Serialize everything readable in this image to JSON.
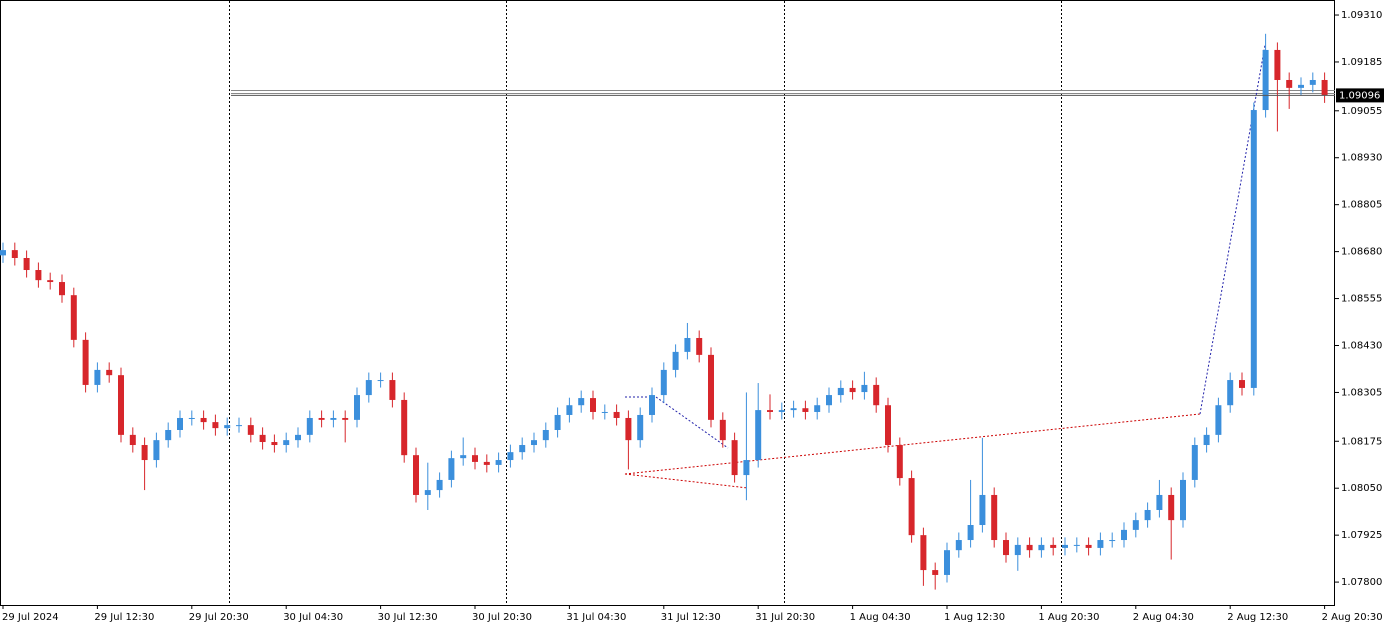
{
  "chart_data": {
    "type": "candlestick",
    "categories": [
      "29 Jul 2024",
      null,
      null,
      null,
      null,
      null,
      null,
      null,
      "29 Jul 12:30",
      null,
      null,
      null,
      null,
      null,
      null,
      null,
      "29 Jul 20:30",
      null,
      null,
      null,
      null,
      null,
      null,
      null,
      "30 Jul 04:30",
      null,
      null,
      null,
      null,
      null,
      null,
      null,
      "30 Jul 12:30",
      null,
      null,
      null,
      null,
      null,
      null,
      null,
      "30 Jul 20:30",
      null,
      null,
      null,
      null,
      null,
      null,
      null,
      "31 Jul 04:30",
      null,
      null,
      null,
      null,
      null,
      null,
      null,
      "31 Jul 12:30",
      null,
      null,
      null,
      null,
      null,
      null,
      null,
      "31 Jul 20:30",
      null,
      null,
      null,
      null,
      null,
      null,
      null,
      "1 Aug 04:30",
      null,
      null,
      null,
      null,
      null,
      null,
      null,
      "1 Aug 12:30",
      null,
      null,
      null,
      null,
      null,
      null,
      null,
      "1 Aug 20:30",
      null,
      null,
      null,
      null,
      null,
      null,
      null,
      "2 Aug 04:30",
      null,
      null,
      null,
      null,
      null,
      null,
      null,
      "2 Aug 12:30",
      null,
      null,
      null,
      null,
      null,
      null,
      null,
      "2 Aug 20:30"
    ],
    "open": [
      1.0867,
      1.08684,
      1.08663,
      1.08631,
      1.08604,
      1.08599,
      1.08564,
      1.08445,
      1.08325,
      1.08365,
      1.08351,
      1.08192,
      1.08165,
      1.08125,
      1.08178,
      1.08205,
      1.08237,
      1.08237,
      1.08226,
      1.0821,
      1.08218,
      1.08218,
      1.08192,
      1.08173,
      1.08165,
      1.08178,
      1.08192,
      1.08237,
      1.08232,
      1.08237,
      1.08232,
      1.08298,
      1.08338,
      1.08338,
      1.08285,
      1.08138,
      1.08032,
      1.08045,
      1.08072,
      1.0813,
      1.08138,
      1.0812,
      1.08112,
      1.08125,
      1.08146,
      1.08165,
      1.08178,
      1.08205,
      1.08245,
      1.08271,
      1.0829,
      1.08253,
      1.08253,
      1.08237,
      1.08178,
      1.08245,
      1.08298,
      1.08365,
      1.08413,
      1.0845,
      1.08405,
      1.08232,
      1.08178,
      1.08085,
      1.08125,
      1.08258,
      1.08253,
      1.08258,
      1.08263,
      1.08253,
      1.08271,
      1.08298,
      1.08317,
      1.08306,
      1.08325,
      1.08271,
      1.08165,
      1.08077,
      1.07925,
      1.07832,
      1.07819,
      1.07885,
      1.07912,
      1.07952,
      1.08032,
      1.07912,
      1.07872,
      1.07899,
      1.07885,
      1.07899,
      1.07891,
      1.07899,
      1.07899,
      1.07891,
      1.07912,
      1.07912,
      1.07939,
      1.07965,
      1.07992,
      1.08032,
      1.07965,
      1.08072,
      1.08165,
      1.08192,
      1.08271,
      1.08338,
      1.08317,
      1.09057,
      1.09217,
      1.09137,
      1.09116,
      1.09124,
      1.09137
    ],
    "high": [
      1.08704,
      1.08704,
      1.08683,
      1.08651,
      1.08624,
      1.08619,
      1.08584,
      1.08465,
      1.08385,
      1.08385,
      1.08371,
      1.08212,
      1.08185,
      1.08198,
      1.08225,
      1.08257,
      1.08257,
      1.08257,
      1.08246,
      1.08238,
      1.08238,
      1.08238,
      1.08212,
      1.08193,
      1.08198,
      1.08212,
      1.08257,
      1.08257,
      1.08257,
      1.08257,
      1.08318,
      1.08358,
      1.08358,
      1.08358,
      1.08305,
      1.08158,
      1.08118,
      1.08092,
      1.0815,
      1.08185,
      1.08158,
      1.0814,
      1.08145,
      1.08166,
      1.08185,
      1.08198,
      1.08225,
      1.08265,
      1.08291,
      1.0831,
      1.0831,
      1.08273,
      1.08273,
      1.08257,
      1.08265,
      1.08318,
      1.08385,
      1.08433,
      1.0849,
      1.0847,
      1.08425,
      1.08252,
      1.08198,
      1.08305,
      1.0833,
      1.083,
      1.08278,
      1.08283,
      1.08283,
      1.08291,
      1.08318,
      1.08337,
      1.08337,
      1.0836,
      1.08345,
      1.08291,
      1.08185,
      1.08097,
      1.07945,
      1.07852,
      1.07905,
      1.07932,
      1.08072,
      1.08184,
      1.08052,
      1.07932,
      1.07919,
      1.07919,
      1.07919,
      1.07919,
      1.07919,
      1.07919,
      1.07919,
      1.07932,
      1.07932,
      1.07959,
      1.07985,
      1.08012,
      1.08072,
      1.08052,
      1.08092,
      1.08185,
      1.08212,
      1.08291,
      1.08358,
      1.08358,
      1.09077,
      1.0926,
      1.09237,
      1.09157,
      1.09144,
      1.09157,
      1.09157
    ],
    "low": [
      1.0865,
      1.08643,
      1.08611,
      1.08584,
      1.08579,
      1.08544,
      1.08425,
      1.08305,
      1.08305,
      1.08331,
      1.08172,
      1.08145,
      1.08045,
      1.08105,
      1.08158,
      1.08185,
      1.08217,
      1.08206,
      1.0819,
      1.0819,
      1.08198,
      1.08172,
      1.08153,
      1.08145,
      1.08145,
      1.08158,
      1.08172,
      1.08212,
      1.08212,
      1.08172,
      1.08212,
      1.08278,
      1.08318,
      1.08265,
      1.08118,
      1.08012,
      1.07992,
      1.08025,
      1.08052,
      1.0811,
      1.081,
      1.08092,
      1.08092,
      1.08105,
      1.08126,
      1.08145,
      1.08158,
      1.08185,
      1.08225,
      1.08251,
      1.08233,
      1.08233,
      1.08217,
      1.081,
      1.08158,
      1.08225,
      1.08278,
      1.08345,
      1.08393,
      1.08385,
      1.08212,
      1.08158,
      1.08065,
      1.08018,
      1.08105,
      1.08233,
      1.08233,
      1.08238,
      1.08233,
      1.08233,
      1.08251,
      1.08278,
      1.08286,
      1.08286,
      1.08251,
      1.08145,
      1.08057,
      1.07905,
      1.0779,
      1.0778,
      1.07799,
      1.07865,
      1.07892,
      1.07932,
      1.07892,
      1.07852,
      1.0783,
      1.07865,
      1.07865,
      1.07871,
      1.07871,
      1.07879,
      1.07871,
      1.07871,
      1.07892,
      1.07892,
      1.07919,
      1.07945,
      1.07972,
      1.0786,
      1.07945,
      1.08052,
      1.08145,
      1.08172,
      1.08251,
      1.08297,
      1.08297,
      1.09037,
      1.09,
      1.0906,
      1.09096,
      1.09104,
      1.09076
    ],
    "close": [
      1.08684,
      1.08663,
      1.08631,
      1.08604,
      1.08599,
      1.08564,
      1.08445,
      1.08325,
      1.08365,
      1.08351,
      1.08192,
      1.08165,
      1.08125,
      1.08178,
      1.08205,
      1.08237,
      1.08237,
      1.08226,
      1.0821,
      1.08218,
      1.08218,
      1.08192,
      1.08173,
      1.08165,
      1.08178,
      1.08192,
      1.08237,
      1.08232,
      1.08237,
      1.08232,
      1.08298,
      1.08338,
      1.08338,
      1.08285,
      1.08138,
      1.08032,
      1.08045,
      1.08072,
      1.0813,
      1.08138,
      1.0812,
      1.08112,
      1.08125,
      1.08146,
      1.08165,
      1.08178,
      1.08205,
      1.08245,
      1.08271,
      1.0829,
      1.08253,
      1.08253,
      1.08237,
      1.08178,
      1.08245,
      1.08298,
      1.08365,
      1.08413,
      1.0845,
      1.08405,
      1.08232,
      1.08178,
      1.08085,
      1.08125,
      1.08258,
      1.08253,
      1.08258,
      1.08263,
      1.08253,
      1.08271,
      1.08298,
      1.08317,
      1.08306,
      1.08325,
      1.08271,
      1.08165,
      1.08077,
      1.07925,
      1.07832,
      1.07819,
      1.07885,
      1.07912,
      1.07952,
      1.08032,
      1.07912,
      1.07872,
      1.07899,
      1.07885,
      1.07899,
      1.07891,
      1.07899,
      1.07899,
      1.07891,
      1.07912,
      1.07912,
      1.07939,
      1.07965,
      1.07992,
      1.08032,
      1.07965,
      1.08072,
      1.08165,
      1.08192,
      1.08271,
      1.08338,
      1.08317,
      1.09057,
      1.09217,
      1.09137,
      1.09116,
      1.09124,
      1.09137,
      1.09096
    ],
    "up_color": "#3b8fdc",
    "down_color": "#d7262b",
    "current_price": 1.09096,
    "ylim": [
      1.07739,
      1.0935
    ],
    "yticks": [
      {
        "value": 1.0931,
        "label": "1.09310"
      },
      1.09185,
      1.09055,
      {
        "value": 1.0893,
        "label": "1.08930"
      },
      1.08805,
      {
        "value": 1.0868,
        "label": "1.08680"
      },
      1.08555,
      {
        "value": 1.0843,
        "label": "1.08430"
      },
      1.08305,
      1.08175,
      {
        "value": 1.0805,
        "label": "1.08050"
      },
      1.07925,
      {
        "value": 1.078,
        "label": "1.07800"
      }
    ]
  }
}
